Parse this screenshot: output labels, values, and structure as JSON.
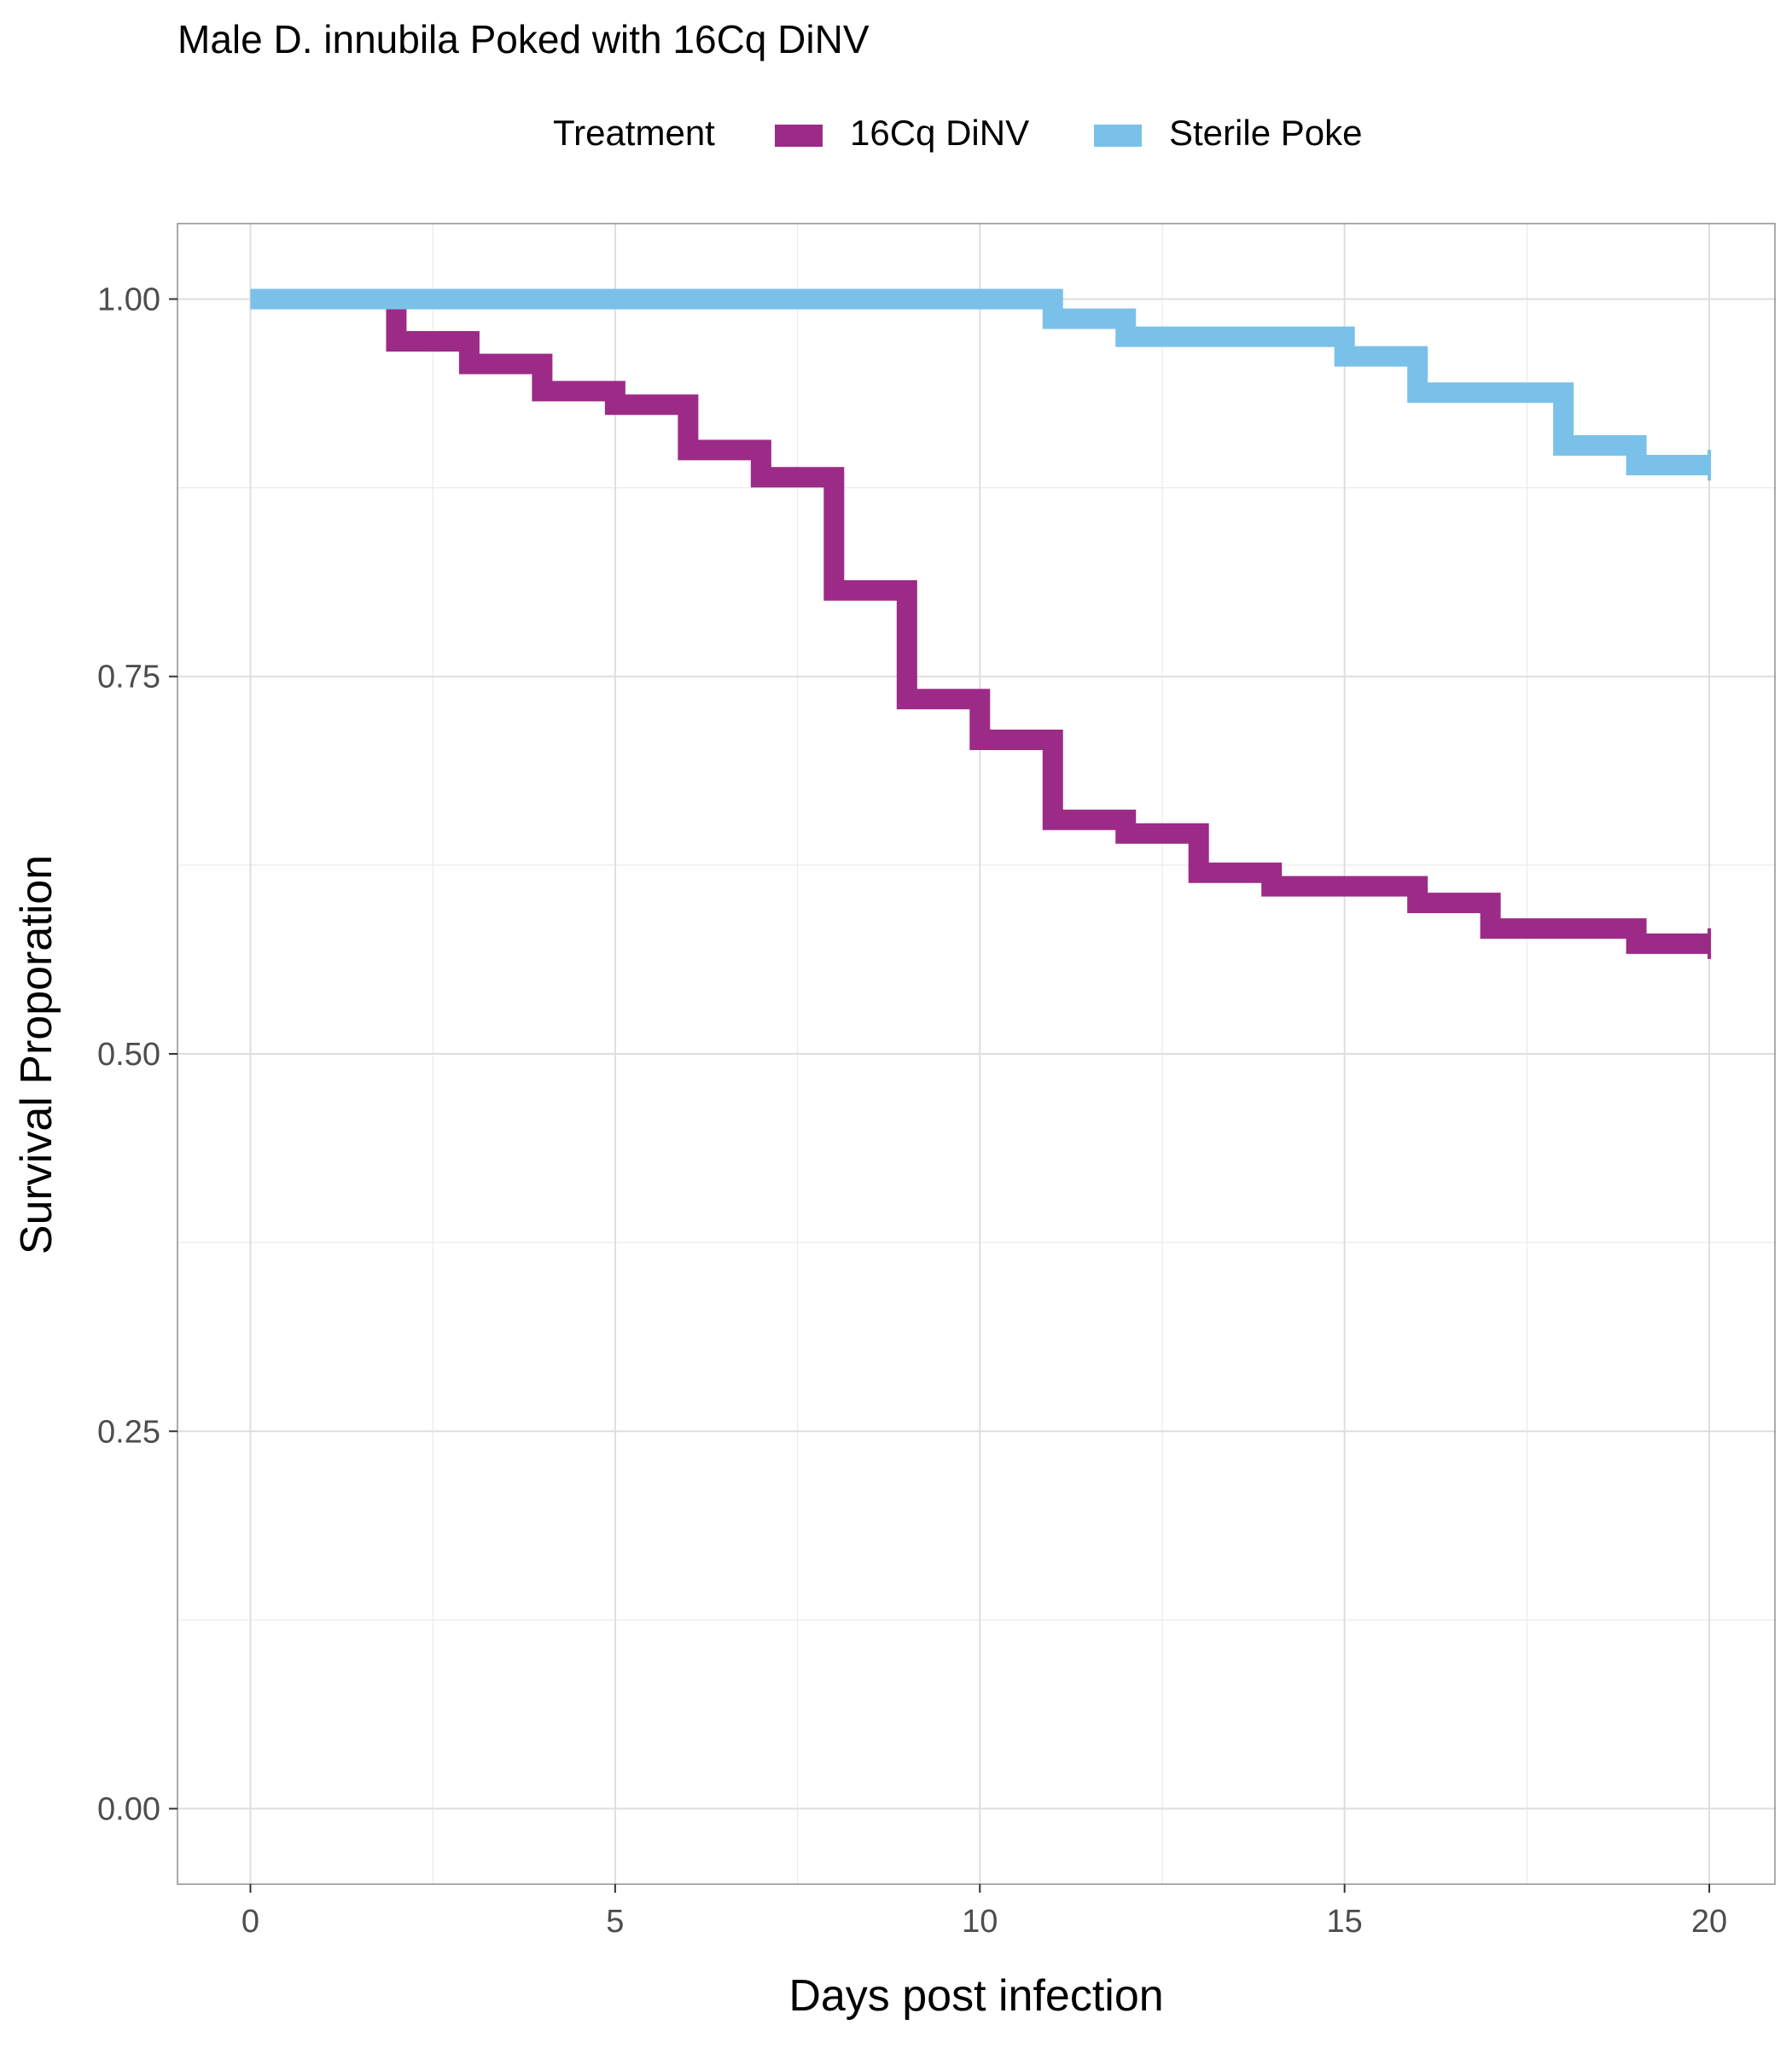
{
  "chart_data": {
    "type": "line",
    "step": true,
    "title": "Male D. innubila Poked with 16Cq DiNV",
    "xlabel": "Days post infection",
    "ylabel": "Survival Proporation",
    "xlim": [
      -1,
      20.9
    ],
    "ylim": [
      -0.05,
      1.05
    ],
    "x_ticks": [
      0,
      5,
      10,
      15,
      20
    ],
    "x_tick_labels": [
      "0",
      "5",
      "10",
      "15",
      "20"
    ],
    "y_ticks": [
      0,
      0.25,
      0.5,
      0.75,
      1
    ],
    "y_tick_labels": [
      "0.00",
      "0.25",
      "0.50",
      "0.75",
      "1.00"
    ],
    "grid": true,
    "legend": {
      "title": "Treatment",
      "position": "top"
    },
    "series": [
      {
        "name": "16Cq DiNV",
        "color": "#9c2b87",
        "x": [
          0,
          2,
          3,
          4,
          5,
          6,
          7,
          8,
          9,
          10,
          11,
          12,
          13,
          14,
          16,
          17,
          19,
          20
        ],
        "y": [
          1.0,
          0.972,
          0.957,
          0.939,
          0.93,
          0.9,
          0.882,
          0.807,
          0.735,
          0.708,
          0.655,
          0.646,
          0.62,
          0.611,
          0.6,
          0.583,
          0.573,
          0.573
        ]
      },
      {
        "name": "Sterile Poke",
        "color": "#7ac1ea",
        "x": [
          0,
          11,
          12,
          15,
          16,
          18,
          19,
          20
        ],
        "y": [
          1.0,
          0.987,
          0.975,
          0.962,
          0.938,
          0.903,
          0.89,
          0.89
        ]
      }
    ]
  }
}
